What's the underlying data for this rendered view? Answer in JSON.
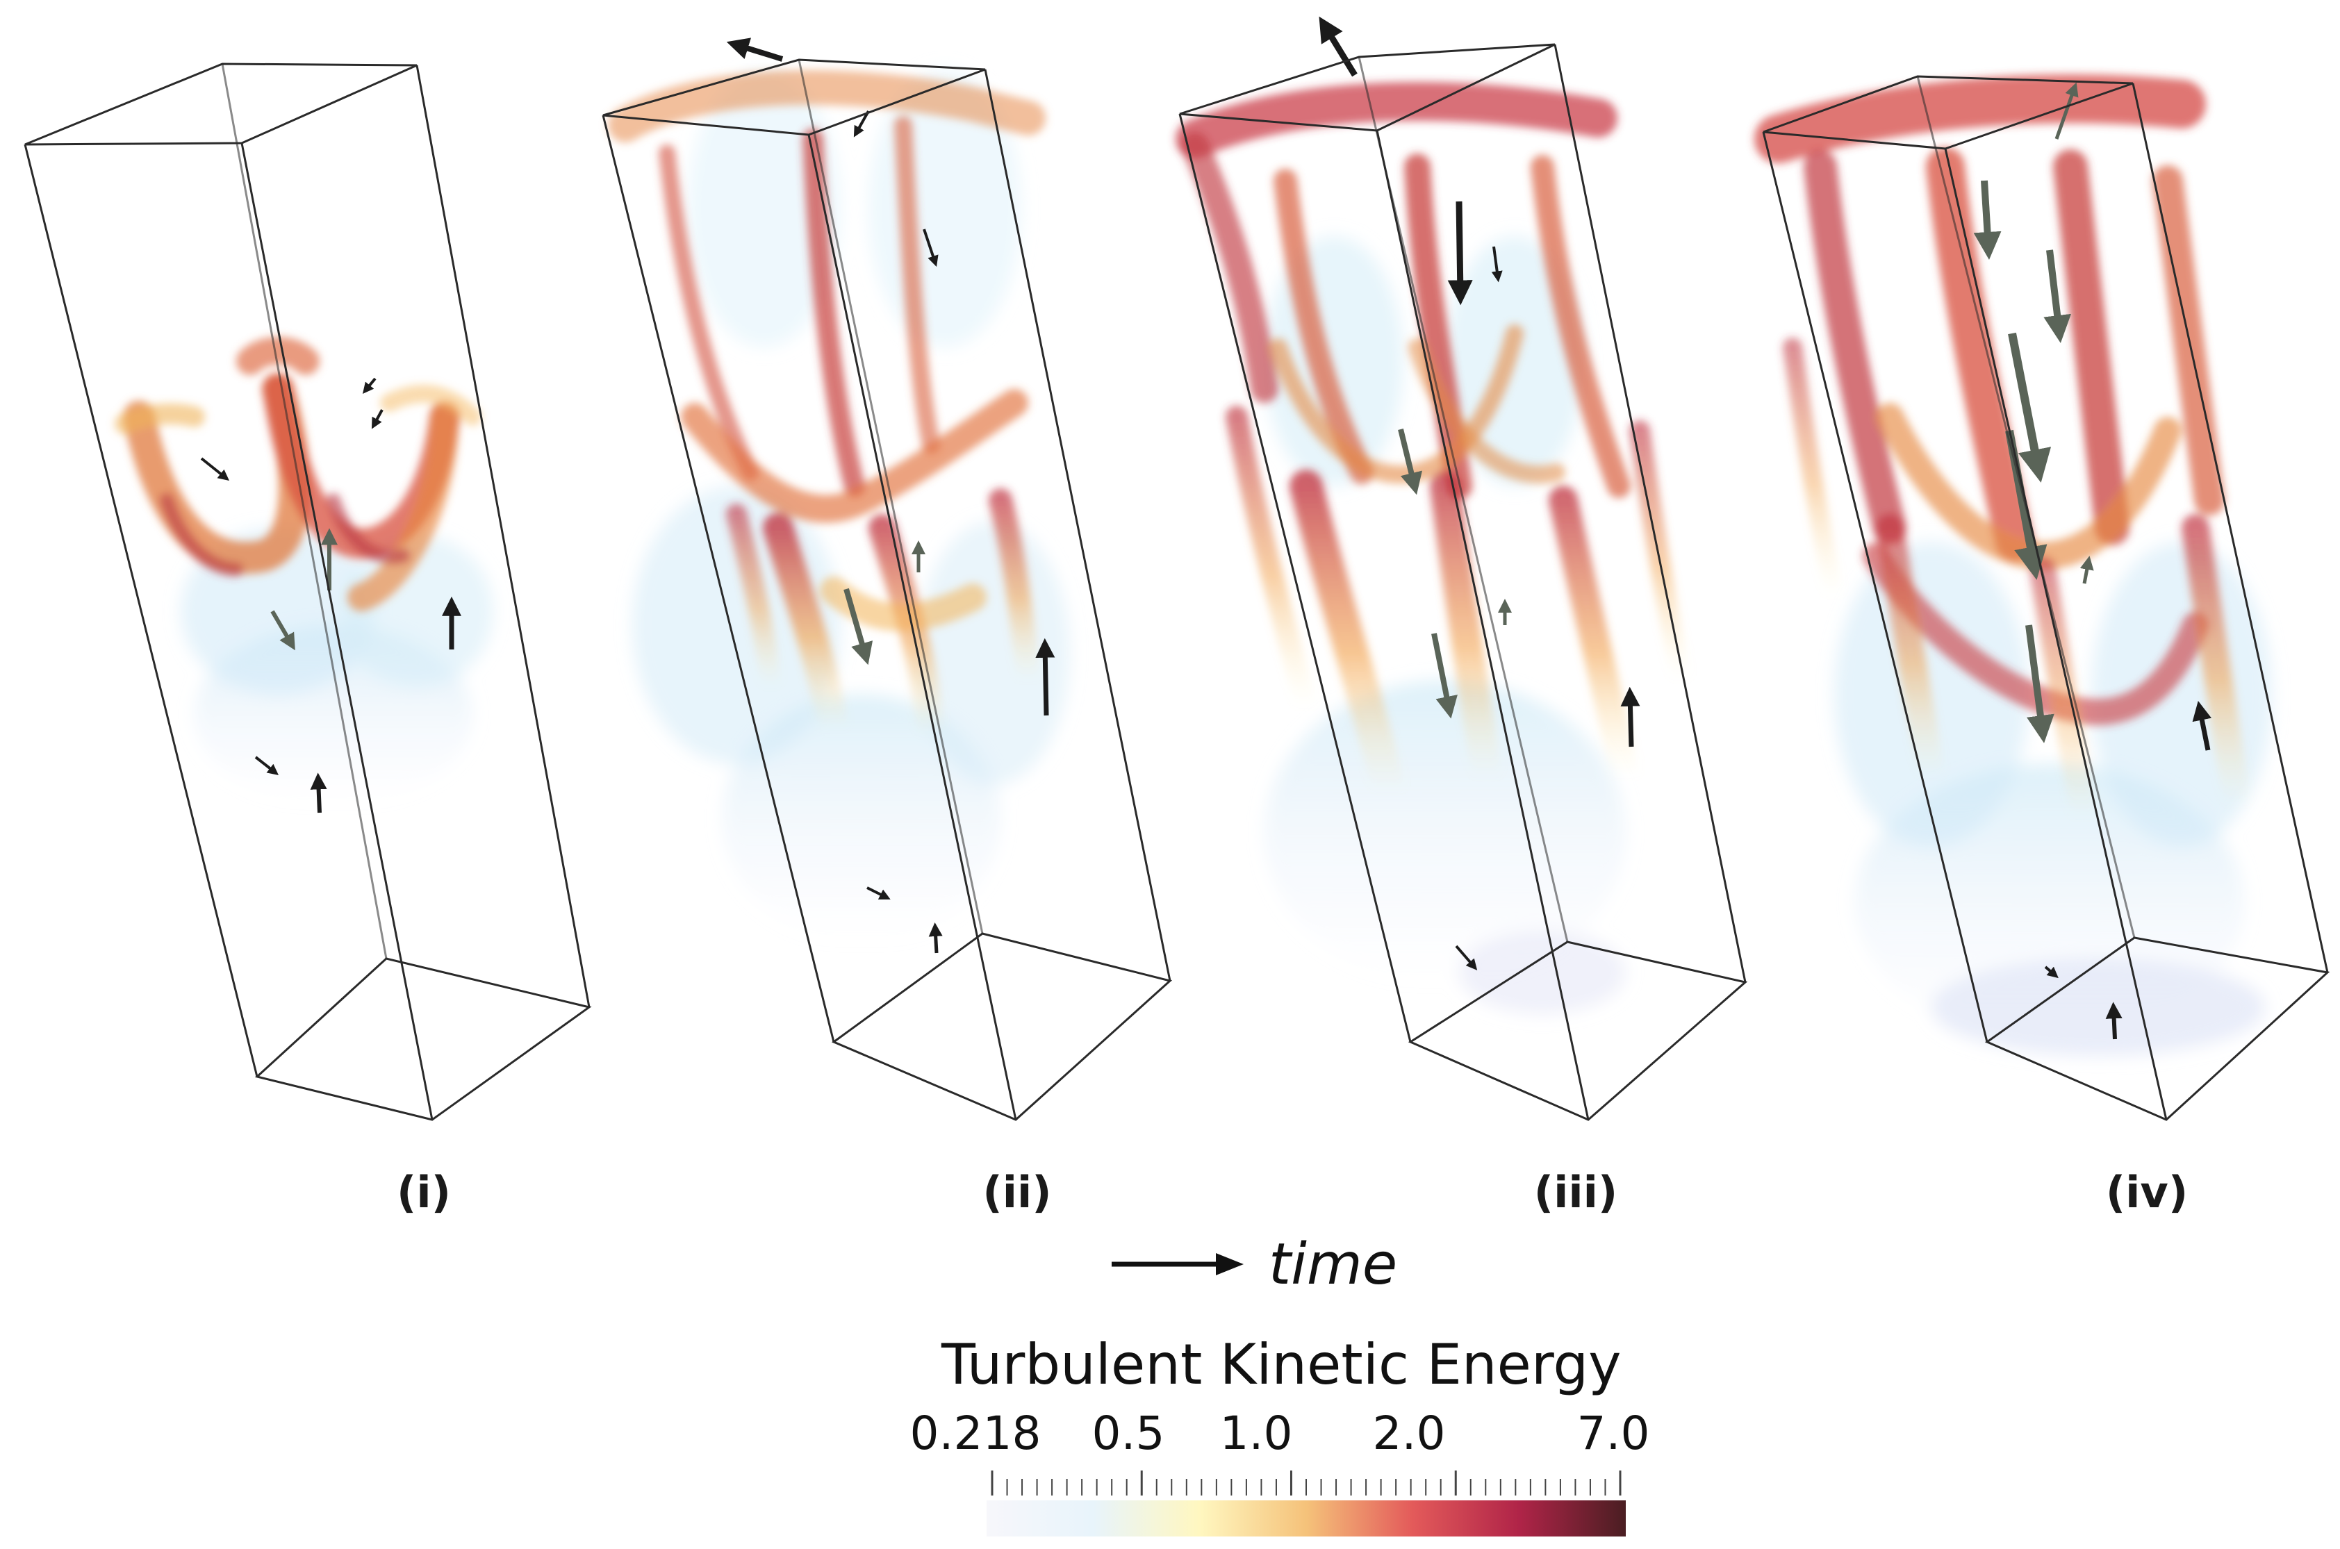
{
  "panels": [
    {
      "label": "(i)"
    },
    {
      "label": "(ii)"
    },
    {
      "label": "(iii)"
    },
    {
      "label": "(iv)"
    }
  ],
  "time_label": "time",
  "colorbar": {
    "title": "Turbulent Kinetic Energy",
    "ticks": [
      "0.218",
      "0.5",
      "1.0",
      "2.0",
      "7.0"
    ],
    "colors": [
      "#f7f7fb",
      "#e8f4fb",
      "#fff7c0",
      "#f5c27a",
      "#e35a5a",
      "#b02448",
      "#4a1e22"
    ]
  }
}
